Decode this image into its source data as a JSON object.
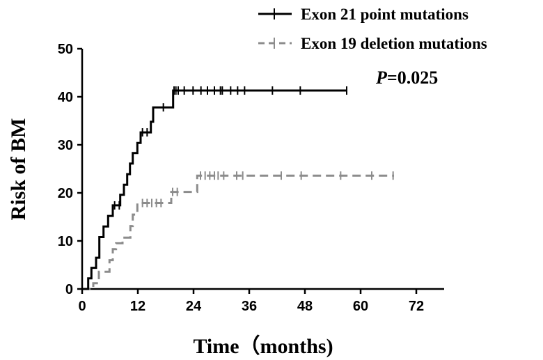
{
  "chart_data": {
    "type": "line",
    "xlabel": "Time（months)",
    "ylabel": "Risk of BM",
    "xlim": [
      0,
      78
    ],
    "ylim": [
      0,
      50
    ],
    "xticks": [
      "0",
      "12",
      "24",
      "36",
      "48",
      "60",
      "72"
    ],
    "yticks": [
      "0",
      "10",
      "20",
      "30",
      "40",
      "50"
    ],
    "grid": false,
    "legend_position": "top-right",
    "annotation": {
      "italic": "P",
      "rest": "=0.025"
    },
    "series": [
      {
        "name": "Exon 21 point mutations",
        "style": "solid",
        "color": "#000000",
        "steps": [
          [
            0,
            0
          ],
          [
            1.3,
            0
          ],
          [
            1.3,
            2.2
          ],
          [
            2,
            2.2
          ],
          [
            2,
            4.4
          ],
          [
            3,
            4.4
          ],
          [
            3,
            6.5
          ],
          [
            3.7,
            6.5
          ],
          [
            3.7,
            10.8
          ],
          [
            4.6,
            10.8
          ],
          [
            4.6,
            13
          ],
          [
            5.6,
            13
          ],
          [
            5.6,
            15.2
          ],
          [
            6.6,
            15.2
          ],
          [
            6.6,
            17.4
          ],
          [
            8.2,
            17.4
          ],
          [
            8.2,
            19.6
          ],
          [
            9,
            19.6
          ],
          [
            9,
            21.7
          ],
          [
            9.7,
            21.7
          ],
          [
            9.7,
            23.9
          ],
          [
            10.3,
            23.9
          ],
          [
            10.3,
            26.1
          ],
          [
            10.9,
            26.1
          ],
          [
            10.9,
            28.3
          ],
          [
            11.9,
            28.3
          ],
          [
            11.9,
            30.4
          ],
          [
            12.6,
            30.4
          ],
          [
            12.6,
            32.6
          ],
          [
            14.8,
            32.6
          ],
          [
            14.8,
            34.8
          ],
          [
            15.3,
            34.8
          ],
          [
            15.3,
            37.8
          ],
          [
            19.6,
            37.8
          ],
          [
            19.6,
            41.3
          ],
          [
            57,
            41.3
          ]
        ],
        "censor_x": [
          7,
          8,
          13,
          14,
          17.5,
          19.8,
          20.2,
          20.7,
          22,
          23.9,
          25.6,
          27,
          28.5,
          29.8,
          30.2,
          32,
          33.5,
          35,
          41,
          47,
          57
        ]
      },
      {
        "name": "Exon 19 deletion mutations",
        "style": "dashed",
        "color": "#8c8c8c",
        "steps": [
          [
            0,
            0
          ],
          [
            2.4,
            0
          ],
          [
            2.4,
            1.2
          ],
          [
            3.6,
            1.2
          ],
          [
            3.6,
            3.6
          ],
          [
            5.9,
            3.6
          ],
          [
            5.9,
            6.0
          ],
          [
            6.6,
            6.0
          ],
          [
            6.6,
            8.3
          ],
          [
            7.3,
            8.3
          ],
          [
            7.3,
            9.5
          ],
          [
            8.7,
            9.5
          ],
          [
            8.7,
            10.7
          ],
          [
            10.4,
            10.7
          ],
          [
            10.4,
            13.1
          ],
          [
            10.9,
            13.1
          ],
          [
            10.9,
            15.5
          ],
          [
            11.9,
            15.5
          ],
          [
            11.9,
            17.9
          ],
          [
            19.2,
            17.9
          ],
          [
            19.2,
            20.2
          ],
          [
            24.8,
            20.2
          ],
          [
            24.8,
            23.6
          ],
          [
            67.2,
            23.6
          ]
        ],
        "censor_x": [
          13,
          14,
          15,
          16,
          17,
          19.5,
          20.5,
          25.5,
          26.5,
          27.5,
          28.5,
          29.3,
          30.5,
          33.3,
          34.6,
          42.9,
          47.2,
          55.7,
          62.4,
          67
        ]
      }
    ]
  }
}
